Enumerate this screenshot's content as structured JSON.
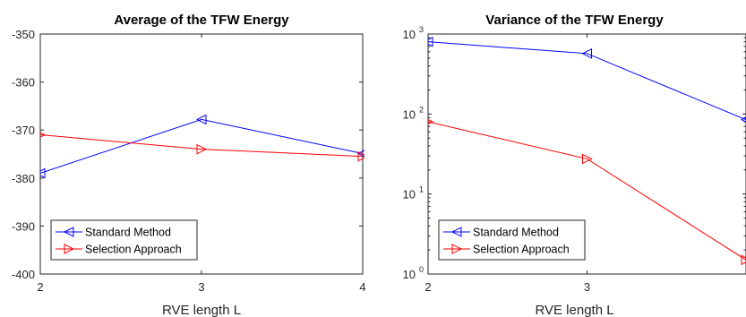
{
  "chart_data": [
    {
      "type": "line",
      "title": "Average of the TFW Energy",
      "xlabel": "RVE length L",
      "ylabel": "",
      "x_ticks": [
        "2",
        "3",
        "4"
      ],
      "y_ticks": [
        "-350",
        "-360",
        "-370",
        "-380",
        "-390",
        "-400"
      ],
      "xlim": [
        2,
        4
      ],
      "ylim": [
        -400,
        -350
      ],
      "y_scale": "linear",
      "legend_position": "bottom-left",
      "series": [
        {
          "name": "Standard Method",
          "color": "#0000ff",
          "marker": "triangle-left",
          "x": [
            2,
            3,
            4
          ],
          "y": [
            -379,
            -367.8,
            -374.9
          ]
        },
        {
          "name": "Selection Approach",
          "color": "#ff0000",
          "marker": "triangle-right",
          "x": [
            2,
            3,
            4
          ],
          "y": [
            -371,
            -374,
            -375.5
          ]
        }
      ]
    },
    {
      "type": "line",
      "title": "Variance of the TFW Energy",
      "xlabel": "RVE length L",
      "ylabel": "",
      "x_ticks": [
        "2",
        "3"
      ],
      "y_ticks": [
        {
          "base": "10",
          "exp": "3"
        },
        {
          "base": "10",
          "exp": "2"
        },
        {
          "base": "10",
          "exp": "1"
        },
        {
          "base": "10",
          "exp": "0"
        }
      ],
      "xlim": [
        2,
        4
      ],
      "ylim": [
        1,
        1000
      ],
      "y_scale": "log",
      "legend_position": "bottom-left",
      "series": [
        {
          "name": "Standard Method",
          "color": "#0000ff",
          "marker": "triangle-left",
          "x": [
            2,
            3,
            4
          ],
          "y": [
            800,
            570,
            85
          ]
        },
        {
          "name": "Selection Approach",
          "color": "#ff0000",
          "marker": "triangle-right",
          "x": [
            2,
            3,
            4
          ],
          "y": [
            80,
            27.5,
            1.5
          ]
        }
      ]
    }
  ]
}
